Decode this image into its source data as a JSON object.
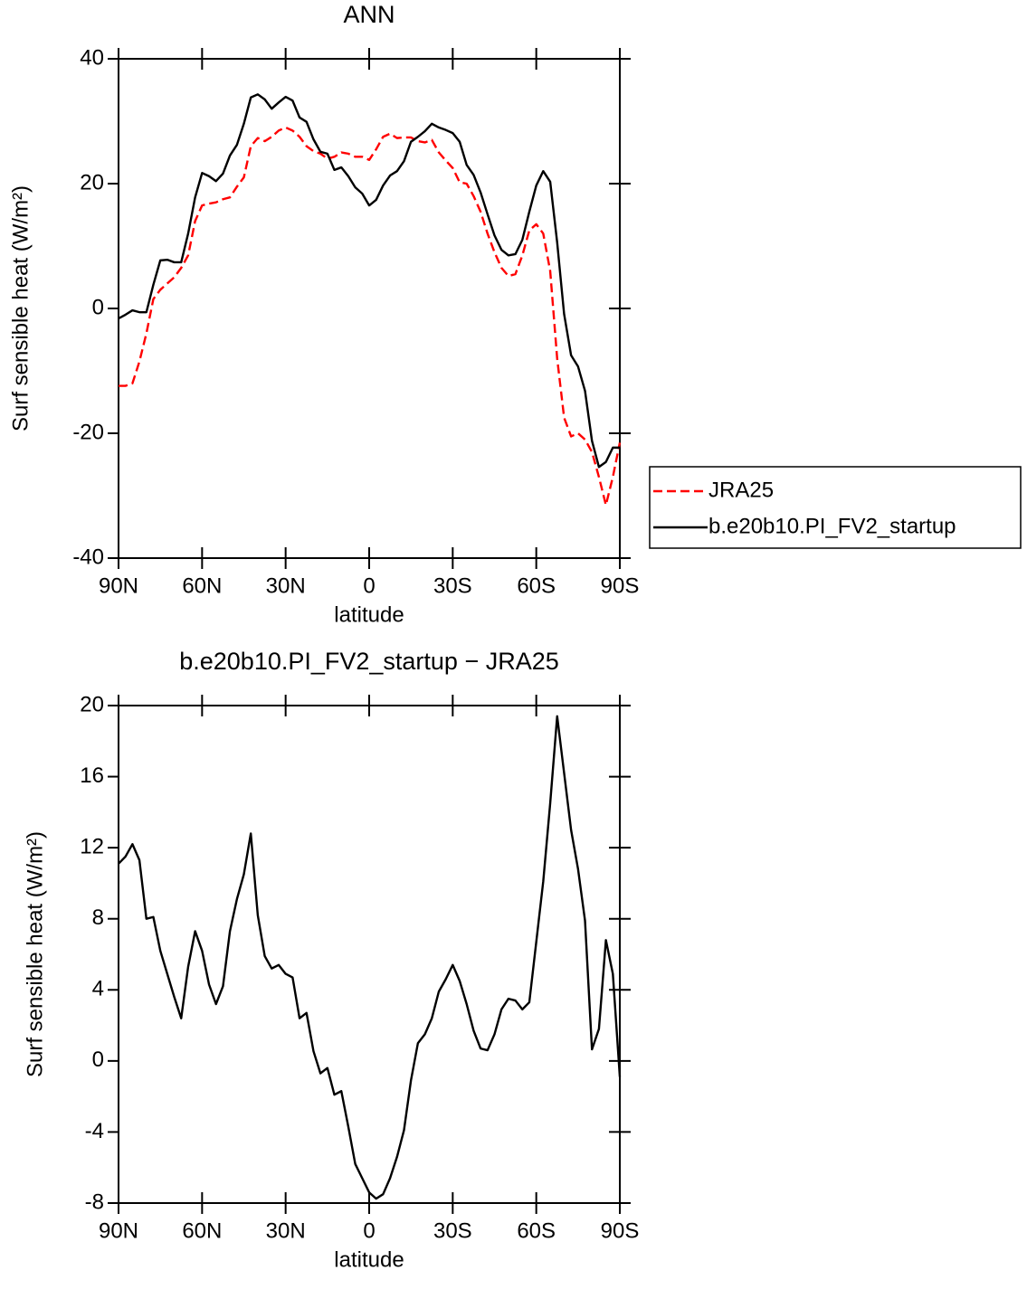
{
  "chart_data": [
    {
      "type": "line",
      "title": "ANN",
      "xlabel": "latitude",
      "ylabel": "Surf sensible heat (W/m²)",
      "x": [
        90,
        87.5,
        85,
        82.5,
        80,
        77.5,
        75,
        72.5,
        70,
        67.5,
        65,
        62.5,
        60,
        57.5,
        55,
        52.5,
        50,
        47.5,
        45,
        42.5,
        40,
        37.5,
        35,
        32.5,
        30,
        27.5,
        25,
        22.5,
        20,
        17.5,
        15,
        12.5,
        10,
        7.5,
        5,
        2.5,
        0,
        -2.5,
        -5,
        -7.5,
        -10,
        -12.5,
        -15,
        -17.5,
        -20,
        -22.5,
        -25,
        -27.5,
        -30,
        -32.5,
        -35,
        -37.5,
        -40,
        -42.5,
        -45,
        -47.5,
        -50,
        -52.5,
        -55,
        -57.5,
        -60,
        -62.5,
        -65,
        -67.5,
        -70,
        -72.5,
        -75,
        -77.5,
        -80,
        -82.5,
        -85,
        -87.5,
        -90
      ],
      "series": [
        {
          "name": "JRA25",
          "color": "#ff0000",
          "dashed": true,
          "values": [
            -12.4,
            -12.4,
            -12,
            -8.5,
            -4,
            1.5,
            3,
            4,
            5,
            6.5,
            8.5,
            14,
            16.5,
            16.8,
            17,
            17.5,
            17.8,
            19.5,
            21,
            26,
            27.3,
            26.8,
            27.5,
            28.5,
            29,
            28.5,
            27.5,
            26,
            25.2,
            24.8,
            24,
            24.3,
            25,
            24.8,
            24.3,
            24.3,
            23.8,
            25.5,
            27.5,
            28,
            27.3,
            27.4,
            27.4,
            26.8,
            26.6,
            27,
            25,
            23.7,
            22.5,
            20.2,
            20,
            18,
            15.5,
            12,
            9,
            6.5,
            5.2,
            5.5,
            8.5,
            12.5,
            13.5,
            12,
            6,
            -8,
            -17.5,
            -20.5,
            -20,
            -21,
            -23,
            -27,
            -31.5,
            -27,
            -21.5
          ]
        },
        {
          "name": "b.e20b10.PI_FV2_startup",
          "color": "#000000",
          "dashed": false,
          "values": [
            -1.6,
            -1,
            -0.3,
            -0.6,
            -0.6,
            3.8,
            7.7,
            7.8,
            7.4,
            7.4,
            12,
            17.8,
            21.7,
            21.2,
            20.4,
            21.6,
            24.5,
            26.2,
            29.6,
            33.8,
            34.3,
            33.5,
            32,
            33,
            33.9,
            33.3,
            30.6,
            29.9,
            27.1,
            25.1,
            24.8,
            22.2,
            22.6,
            21.2,
            19.4,
            18.4,
            16.5,
            17.4,
            19.7,
            21.3,
            22,
            23.6,
            26.7,
            27.5,
            28.4,
            29.6,
            29,
            28.6,
            28.1,
            26.7,
            23,
            21.4,
            18.6,
            15.1,
            11.7,
            9.4,
            8.5,
            8.7,
            11,
            15.5,
            19.7,
            22,
            20.3,
            10.6,
            -0.9,
            -7.5,
            -9.3,
            -13.2,
            -21.2,
            -25.4,
            -24.6,
            -22.3,
            -22.3
          ]
        }
      ],
      "xlim": [
        90,
        -90
      ],
      "xticks": [
        {
          "value": 90,
          "label": "90N"
        },
        {
          "value": 60,
          "label": "60N"
        },
        {
          "value": 30,
          "label": "30N"
        },
        0,
        {
          "value": -30,
          "label": "30S"
        },
        {
          "value": -60,
          "label": "60S"
        },
        {
          "value": -90,
          "label": "90S"
        }
      ],
      "ylim": [
        -40,
        40
      ],
      "yticks": [
        -40,
        -20,
        0,
        20,
        40
      ],
      "legend": "right"
    },
    {
      "type": "line",
      "title": "b.e20b10.PI_FV2_startup − JRA25",
      "xlabel": "latitude",
      "ylabel": "Surf sensible heat (W/m²)",
      "x": [
        90,
        87.5,
        85,
        82.5,
        80,
        77.5,
        75,
        72.5,
        70,
        67.5,
        65,
        62.5,
        60,
        57.5,
        55,
        52.5,
        50,
        47.5,
        45,
        42.5,
        40,
        37.5,
        35,
        32.5,
        30,
        27.5,
        25,
        22.5,
        20,
        17.5,
        15,
        12.5,
        10,
        7.5,
        5,
        2.5,
        0,
        -2.5,
        -5,
        -7.5,
        -10,
        -12.5,
        -15,
        -17.5,
        -20,
        -22.5,
        -25,
        -27.5,
        -30,
        -32.5,
        -35,
        -37.5,
        -40,
        -42.5,
        -45,
        -47.5,
        -50,
        -52.5,
        -55,
        -57.5,
        -60,
        -62.5,
        -65,
        -67.5,
        -70,
        -72.5,
        -75,
        -77.5,
        -80,
        -82.5,
        -85,
        -87.5,
        -90
      ],
      "series": [
        {
          "color": "#000000",
          "dashed": false,
          "values": [
            11.1,
            11.5,
            12.2,
            11.3,
            8,
            8.1,
            6.2,
            4.9,
            3.6,
            2.4,
            5.3,
            7.3,
            6.2,
            4.3,
            3.2,
            4.2,
            7.3,
            9.1,
            10.5,
            12.8,
            8.2,
            5.9,
            5.2,
            5.4,
            4.9,
            4.7,
            2.4,
            2.7,
            0.55,
            -0.7,
            -0.4,
            -1.9,
            -1.7,
            -3.7,
            -5.8,
            -6.6,
            -7.4,
            -7.75,
            -7.5,
            -6.6,
            -5.4,
            -3.9,
            -1.1,
            1,
            1.5,
            2.4,
            3.9,
            4.6,
            5.4,
            4.5,
            3.2,
            1.7,
            0.7,
            0.6,
            1.5,
            2.9,
            3.5,
            3.4,
            2.9,
            3.3,
            6.7,
            10.1,
            14.5,
            19.4,
            16.2,
            13,
            10.8,
            7.9,
            0.65,
            1.8,
            6.8,
            4.9,
            -0.9
          ]
        }
      ],
      "xlim": [
        90,
        -90
      ],
      "xticks": [
        {
          "value": 90,
          "label": "90N"
        },
        {
          "value": 60,
          "label": "60N"
        },
        {
          "value": 30,
          "label": "30N"
        },
        0,
        {
          "value": -30,
          "label": "30S"
        },
        {
          "value": -60,
          "label": "60S"
        },
        {
          "value": -90,
          "label": "90S"
        }
      ],
      "ylim": [
        -8,
        20
      ],
      "yticks": [
        -8,
        -4,
        0,
        4,
        8,
        12,
        16,
        20
      ]
    }
  ]
}
